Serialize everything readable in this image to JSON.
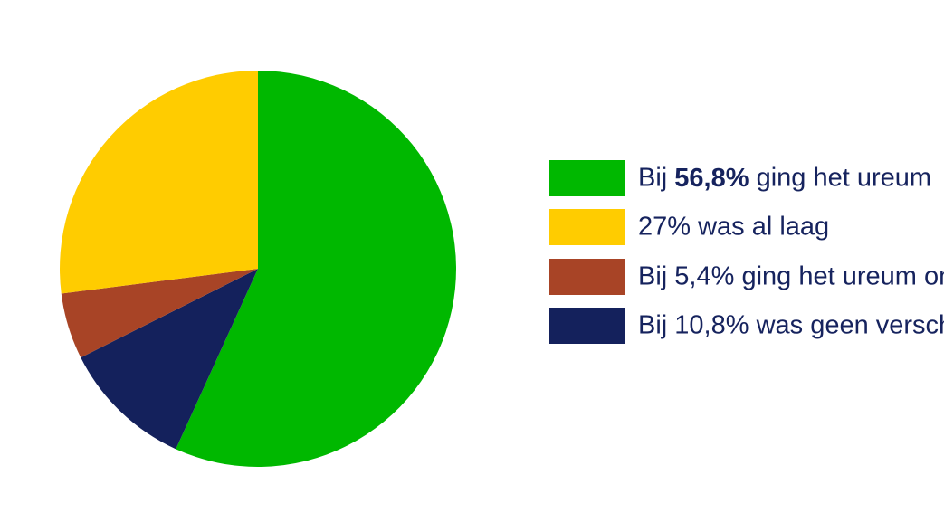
{
  "chart_data": {
    "type": "pie",
    "categories": [
      "Bij 56,8% ging het ureum",
      "27% was al laag",
      "Bij 5,4% ging het ureum on",
      "Bij 10,8% was geen versch"
    ],
    "values": [
      56.8,
      27,
      5.4,
      10.8
    ],
    "value_labels": [
      "56,8%",
      "27%",
      "5,4%",
      "10,8%"
    ],
    "bold_value_label": [
      true,
      false,
      false,
      false
    ],
    "colors": [
      "#00b800",
      "#ffcc00",
      "#a84426",
      "#14215c"
    ],
    "slice_order": [
      0,
      3,
      2,
      1
    ]
  }
}
